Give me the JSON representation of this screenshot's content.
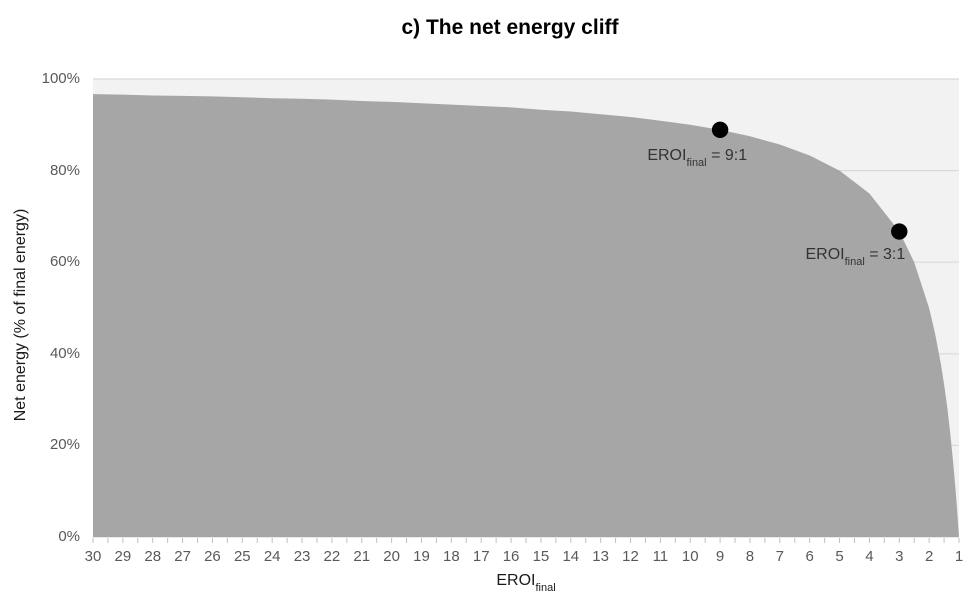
{
  "chart_data": {
    "type": "area",
    "title": "c) The net energy cliff",
    "xlabel_main": "EROI",
    "xlabel_sub": "final",
    "ylabel": "Net energy (% of final energy)",
    "xlim": [
      30,
      1
    ],
    "x_axis_reversed": true,
    "ylim": [
      0,
      100
    ],
    "grid": "horizontal",
    "legend": "none",
    "x": [
      30,
      29,
      28,
      27,
      26,
      25,
      24,
      23,
      22,
      21,
      20,
      19,
      18,
      17,
      16,
      15,
      14,
      13,
      12,
      11,
      10,
      9,
      8,
      7,
      6,
      5,
      4,
      3,
      2.5,
      2,
      1.8,
      1.6,
      1.5,
      1.4,
      1.3,
      1.2,
      1.1,
      1.05,
      1
    ],
    "y": [
      96.7,
      96.6,
      96.4,
      96.3,
      96.2,
      96.0,
      95.8,
      95.7,
      95.5,
      95.2,
      95.0,
      94.7,
      94.4,
      94.1,
      93.8,
      93.3,
      92.9,
      92.3,
      91.7,
      90.9,
      90.0,
      88.9,
      87.5,
      85.7,
      83.3,
      80.0,
      75.0,
      66.7,
      60.0,
      50.0,
      44.4,
      37.5,
      33.3,
      28.6,
      23.1,
      16.7,
      9.1,
      4.8,
      0.0
    ],
    "x_tick_labels": [
      "30",
      "29",
      "28",
      "27",
      "26",
      "25",
      "24",
      "23",
      "22",
      "21",
      "20",
      "19",
      "18",
      "17",
      "16",
      "15",
      "14",
      "13",
      "12",
      "11",
      "10",
      "9",
      "8",
      "7",
      "6",
      "5",
      "4",
      "3",
      "2",
      "1"
    ],
    "x_tick_values": [
      30,
      29,
      28,
      27,
      26,
      25,
      24,
      23,
      22,
      21,
      20,
      19,
      18,
      17,
      16,
      15,
      14,
      13,
      12,
      11,
      10,
      9,
      8,
      7,
      6,
      5,
      4,
      3,
      2,
      1
    ],
    "y_tick_labels": [
      "100%",
      "80%",
      "60%",
      "40%",
      "20%",
      "0%"
    ],
    "y_tick_values": [
      100,
      80,
      60,
      40,
      20,
      0
    ],
    "markers": [
      {
        "x": 9,
        "y": 88.9,
        "label_main": "EROI",
        "label_sub": "final",
        "label_rest": " = 9:1"
      },
      {
        "x": 3,
        "y": 66.7,
        "label_main": "EROI",
        "label_sub": "final",
        "label_rest": " = 3:1"
      }
    ],
    "colors": {
      "area_fill": "#a6a6a6",
      "plot_background": "#f2f2f2",
      "gridline": "#d9d9d9",
      "tick_mark": "#bfbfbf",
      "axis_tick_text": "#595959",
      "marker_dot": "#000000",
      "annotation_text": "#333333",
      "title_text": "#000000"
    }
  }
}
